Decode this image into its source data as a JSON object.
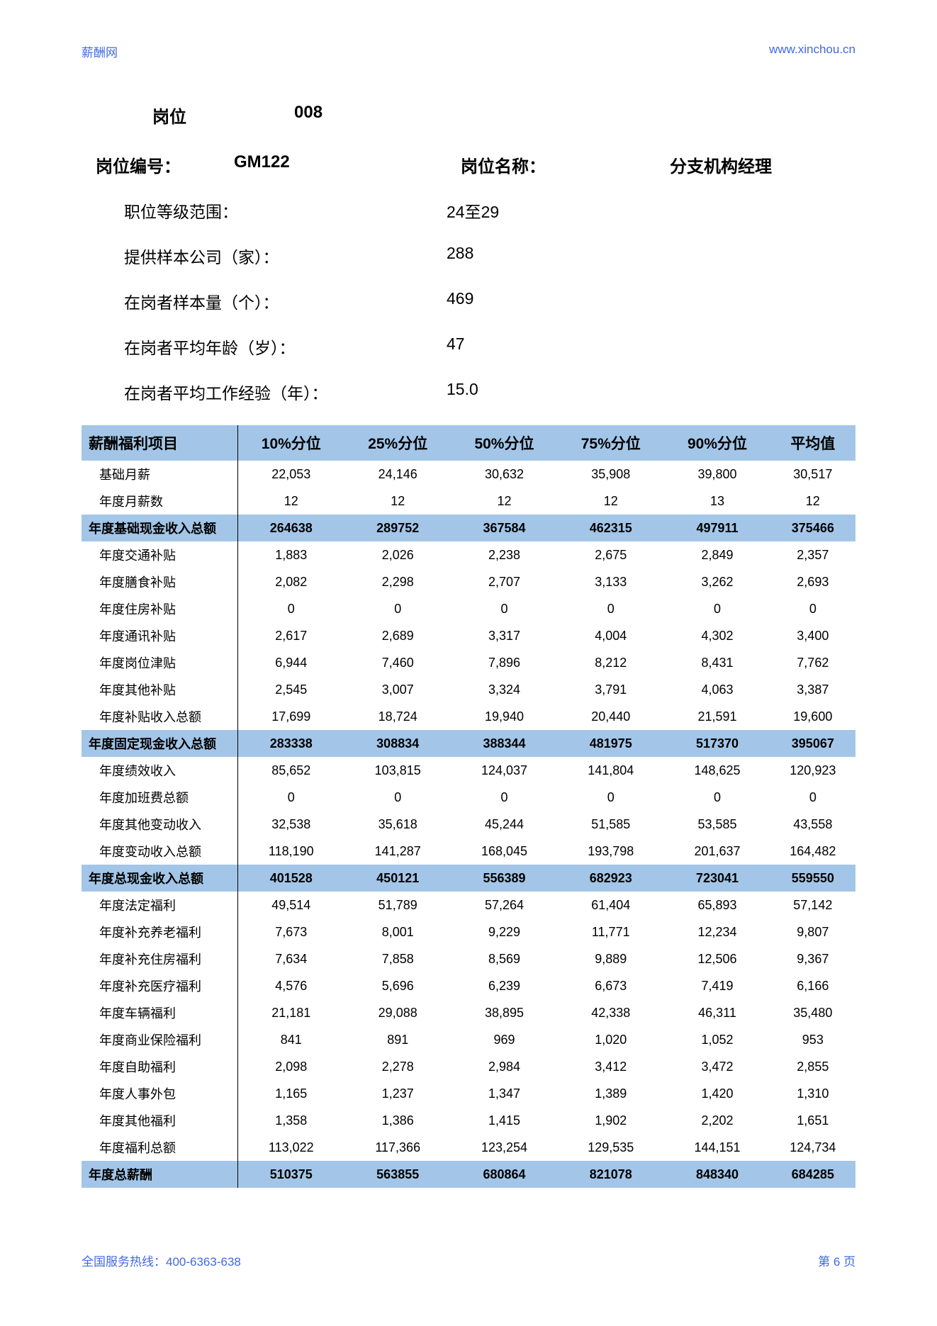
{
  "header": {
    "left": "薪酬网",
    "right": "www.xinchou.cn"
  },
  "meta": {
    "pos_label": "岗位",
    "pos_val": "008",
    "code_label": "岗位编号：",
    "code_val": "GM122",
    "name_label": "岗位名称：",
    "name_val": "分支机构经理"
  },
  "info": [
    {
      "label": "职位等级范围：",
      "val": "24至29"
    },
    {
      "label": "提供样本公司（家）：",
      "val": "288"
    },
    {
      "label": "在岗者样本量（个）：",
      "val": "469"
    },
    {
      "label": "在岗者平均年龄（岁）：",
      "val": "47"
    },
    {
      "label": "在岗者平均工作经验（年）：",
      "val": "15.0"
    }
  ],
  "table": {
    "columns": [
      "薪酬福利项目",
      "10%分位",
      "25%分位",
      "50%分位",
      "75%分位",
      "90%分位",
      "平均值"
    ],
    "rows": [
      {
        "t": "d",
        "c": [
          "基础月薪",
          "22,053",
          "24,146",
          "30,632",
          "35,908",
          "39,800",
          "30,517"
        ]
      },
      {
        "t": "d",
        "c": [
          "年度月薪数",
          "12",
          "12",
          "12",
          "12",
          "13",
          "12"
        ]
      },
      {
        "t": "s",
        "c": [
          "年度基础现金收入总额",
          "264638",
          "289752",
          "367584",
          "462315",
          "497911",
          "375466"
        ]
      },
      {
        "t": "d",
        "c": [
          "年度交通补贴",
          "1,883",
          "2,026",
          "2,238",
          "2,675",
          "2,849",
          "2,357"
        ]
      },
      {
        "t": "d",
        "c": [
          "年度膳食补贴",
          "2,082",
          "2,298",
          "2,707",
          "3,133",
          "3,262",
          "2,693"
        ]
      },
      {
        "t": "d",
        "c": [
          "年度住房补贴",
          "0",
          "0",
          "0",
          "0",
          "0",
          "0"
        ]
      },
      {
        "t": "d",
        "c": [
          "年度通讯补贴",
          "2,617",
          "2,689",
          "3,317",
          "4,004",
          "4,302",
          "3,400"
        ]
      },
      {
        "t": "d",
        "c": [
          "年度岗位津贴",
          "6,944",
          "7,460",
          "7,896",
          "8,212",
          "8,431",
          "7,762"
        ]
      },
      {
        "t": "d",
        "c": [
          "年度其他补贴",
          "2,545",
          "3,007",
          "3,324",
          "3,791",
          "4,063",
          "3,387"
        ]
      },
      {
        "t": "d",
        "c": [
          "年度补贴收入总额",
          "17,699",
          "18,724",
          "19,940",
          "20,440",
          "21,591",
          "19,600"
        ]
      },
      {
        "t": "s",
        "c": [
          "年度固定现金收入总额",
          "283338",
          "308834",
          "388344",
          "481975",
          "517370",
          "395067"
        ]
      },
      {
        "t": "d",
        "c": [
          "年度绩效收入",
          "85,652",
          "103,815",
          "124,037",
          "141,804",
          "148,625",
          "120,923"
        ]
      },
      {
        "t": "d",
        "c": [
          "年度加班费总额",
          "0",
          "0",
          "0",
          "0",
          "0",
          "0"
        ]
      },
      {
        "t": "d",
        "c": [
          "年度其他变动收入",
          "32,538",
          "35,618",
          "45,244",
          "51,585",
          "53,585",
          "43,558"
        ]
      },
      {
        "t": "d",
        "c": [
          "年度变动收入总额",
          "118,190",
          "141,287",
          "168,045",
          "193,798",
          "201,637",
          "164,482"
        ]
      },
      {
        "t": "s",
        "c": [
          "年度总现金收入总额",
          "401528",
          "450121",
          "556389",
          "682923",
          "723041",
          "559550"
        ]
      },
      {
        "t": "d",
        "c": [
          "年度法定福利",
          "49,514",
          "51,789",
          "57,264",
          "61,404",
          "65,893",
          "57,142"
        ]
      },
      {
        "t": "d",
        "c": [
          "年度补充养老福利",
          "7,673",
          "8,001",
          "9,229",
          "11,771",
          "12,234",
          "9,807"
        ]
      },
      {
        "t": "d",
        "c": [
          "年度补充住房福利",
          "7,634",
          "7,858",
          "8,569",
          "9,889",
          "12,506",
          "9,367"
        ]
      },
      {
        "t": "d",
        "c": [
          "年度补充医疗福利",
          "4,576",
          "5,696",
          "6,239",
          "6,673",
          "7,419",
          "6,166"
        ]
      },
      {
        "t": "d",
        "c": [
          "年度车辆福利",
          "21,181",
          "29,088",
          "38,895",
          "42,338",
          "46,311",
          "35,480"
        ]
      },
      {
        "t": "d",
        "c": [
          "年度商业保险福利",
          "841",
          "891",
          "969",
          "1,020",
          "1,052",
          "953"
        ]
      },
      {
        "t": "d",
        "c": [
          "年度自助福利",
          "2,098",
          "2,278",
          "2,984",
          "3,412",
          "3,472",
          "2,855"
        ]
      },
      {
        "t": "d",
        "c": [
          "年度人事外包",
          "1,165",
          "1,237",
          "1,347",
          "1,389",
          "1,420",
          "1,310"
        ]
      },
      {
        "t": "d",
        "c": [
          "年度其他福利",
          "1,358",
          "1,386",
          "1,415",
          "1,902",
          "2,202",
          "1,651"
        ]
      },
      {
        "t": "d",
        "c": [
          "年度福利总额",
          "113,022",
          "117,366",
          "123,254",
          "129,535",
          "144,151",
          "124,734"
        ]
      },
      {
        "t": "s",
        "c": [
          "年度总薪酬",
          "510375",
          "563855",
          "680864",
          "821078",
          "848340",
          "684285"
        ]
      }
    ]
  },
  "footer": {
    "left": "全国服务热线：400-6363-638",
    "right": "第 6 页"
  }
}
